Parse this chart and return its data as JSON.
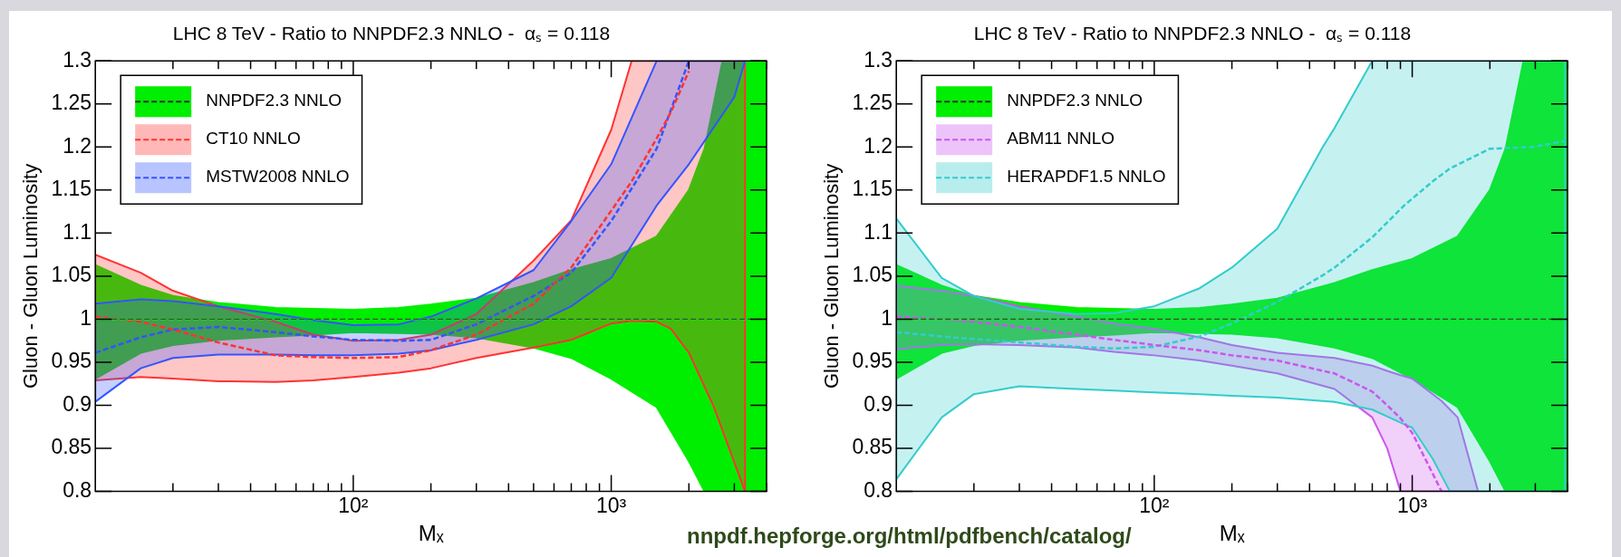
{
  "chart_data": [
    {
      "type": "line",
      "title": "LHC 8 TeV - Ratio to NNPDF2.3 NNLO -  αₛ = 0.118",
      "xlabel": "Mₓ",
      "ylabel": "Gluon - Gluon Luminosity",
      "log": "x",
      "marker": "none",
      "legend": "top left",
      "xlim": [
        10,
        4000
      ],
      "xticks": [
        {
          "value": 20,
          "label": null
        },
        {
          "value": 30,
          "label": null
        },
        {
          "value": 40,
          "label": null
        },
        {
          "value": 50,
          "label": null
        },
        {
          "value": 60,
          "label": null
        },
        {
          "value": 70,
          "label": null
        },
        {
          "value": 80,
          "label": null
        },
        {
          "value": 90,
          "label": null
        },
        {
          "value": 100,
          "label": "10²"
        },
        {
          "value": 200,
          "label": null
        },
        {
          "value": 300,
          "label": null
        },
        {
          "value": 400,
          "label": null
        },
        {
          "value": 500,
          "label": null
        },
        {
          "value": 600,
          "label": null
        },
        {
          "value": 700,
          "label": null
        },
        {
          "value": 800,
          "label": null
        },
        {
          "value": 900,
          "label": null
        },
        {
          "value": 1000,
          "label": "10³"
        },
        {
          "value": 2000,
          "label": null
        },
        {
          "value": 3000,
          "label": null
        },
        {
          "value": 4000,
          "label": null
        }
      ],
      "ylim": [
        0.8,
        1.3
      ],
      "yticks": [
        0.8,
        0.85,
        0.9,
        0.95,
        1,
        1.05,
        1.1,
        1.15,
        1.2,
        1.25,
        1.3
      ],
      "ref_lines": [
        {
          "axis": "y",
          "value": 1,
          "label": null,
          "color": "#444444",
          "line_style": "dashed"
        }
      ],
      "annotations": [
        "nnpdf.hepforge.org/html/pdfbench/catalog/"
      ],
      "series": [
        {
          "name": "NNPDF2.3 NNLO",
          "color": "#00ee00",
          "line_style": "dashed",
          "x": [
            10,
            15,
            20,
            30,
            50,
            70,
            100,
            150,
            200,
            300,
            500,
            700,
            1000,
            1500,
            2000,
            2300,
            2700,
            3000,
            4000
          ],
          "values": [
            1,
            1,
            1,
            1,
            1,
            1,
            1,
            1,
            1,
            1,
            1,
            1,
            1,
            1,
            1,
            1,
            1,
            1,
            1
          ],
          "upper": [
            1.063,
            1.039,
            1.027,
            1.019,
            1.013,
            1.012,
            1.011,
            1.013,
            1.017,
            1.024,
            1.042,
            1.057,
            1.07,
            1.096,
            1.15,
            1.198,
            1.3,
            1.3,
            1.3
          ],
          "lower": [
            0.931,
            0.961,
            0.97,
            0.976,
            0.98,
            0.982,
            0.985,
            0.984,
            0.983,
            0.979,
            0.967,
            0.955,
            0.931,
            0.898,
            0.835,
            0.8,
            0.8,
            0.8,
            0.8
          ]
        },
        {
          "name": "CT10 NNLO",
          "color": "#ff3333",
          "line_style": "dashed",
          "x": [
            10,
            15,
            20,
            30,
            50,
            70,
            100,
            150,
            200,
            300,
            500,
            700,
            1000,
            1200,
            1500,
            1700,
            2000,
            2500,
            3300
          ],
          "values": [
            1.003,
            0.997,
            0.988,
            0.973,
            0.958,
            0.956,
            0.955,
            0.956,
            0.964,
            0.982,
            1.018,
            1.06,
            1.126,
            1.16,
            1.21,
            1.24,
            1.288,
            null,
            null
          ],
          "upper": [
            1.075,
            1.054,
            1.033,
            1.015,
            0.997,
            0.982,
            0.975,
            0.976,
            0.982,
            1.006,
            1.068,
            1.115,
            1.22,
            1.3,
            1.3,
            1.3,
            1.3,
            1.3,
            1.3
          ],
          "lower": [
            0.929,
            0.933,
            0.931,
            0.928,
            0.927,
            0.929,
            0.933,
            0.938,
            0.943,
            0.955,
            0.967,
            0.976,
            0.995,
            0.998,
            0.997,
            0.989,
            0.961,
            0.898,
            0.8
          ]
        },
        {
          "name": "MSTW2008 NNLO",
          "color": "#3355ff",
          "line_style": "dashed",
          "x": [
            10,
            15,
            20,
            30,
            50,
            70,
            100,
            150,
            200,
            300,
            500,
            700,
            1000,
            1500,
            2000,
            3000,
            3300
          ],
          "values": [
            0.961,
            0.979,
            0.988,
            0.991,
            0.985,
            0.98,
            0.976,
            0.975,
            0.976,
            0.994,
            1.027,
            1.054,
            1.114,
            1.198,
            1.3,
            null,
            null
          ],
          "upper": [
            1.018,
            1.023,
            1.021,
            1.015,
            1.006,
            0.999,
            0.993,
            0.994,
            1.003,
            1.024,
            1.057,
            1.114,
            1.18,
            1.3,
            1.3,
            1.3,
            1.3
          ],
          "lower": [
            0.904,
            0.943,
            0.955,
            0.959,
            0.959,
            0.958,
            0.958,
            0.96,
            0.964,
            0.976,
            0.994,
            1.015,
            1.048,
            1.132,
            1.18,
            1.258,
            1.3
          ]
        }
      ]
    },
    {
      "type": "line",
      "title": "LHC 8 TeV - Ratio to NNPDF2.3 NNLO -  αₛ = 0.118",
      "xlabel": "Mₓ",
      "ylabel": "Gluon - Gluon Luminosity",
      "log": "x",
      "marker": "none",
      "legend": "top left",
      "xlim": [
        10,
        4000
      ],
      "xticks": [
        {
          "value": 20,
          "label": null
        },
        {
          "value": 30,
          "label": null
        },
        {
          "value": 40,
          "label": null
        },
        {
          "value": 50,
          "label": null
        },
        {
          "value": 60,
          "label": null
        },
        {
          "value": 70,
          "label": null
        },
        {
          "value": 80,
          "label": null
        },
        {
          "value": 90,
          "label": null
        },
        {
          "value": 100,
          "label": "10²"
        },
        {
          "value": 200,
          "label": null
        },
        {
          "value": 300,
          "label": null
        },
        {
          "value": 400,
          "label": null
        },
        {
          "value": 500,
          "label": null
        },
        {
          "value": 600,
          "label": null
        },
        {
          "value": 700,
          "label": null
        },
        {
          "value": 800,
          "label": null
        },
        {
          "value": 900,
          "label": null
        },
        {
          "value": 1000,
          "label": "10³"
        },
        {
          "value": 2000,
          "label": null
        },
        {
          "value": 3000,
          "label": null
        },
        {
          "value": 4000,
          "label": null
        }
      ],
      "ylim": [
        0.8,
        1.3
      ],
      "yticks": [
        0.8,
        0.85,
        0.9,
        0.95,
        1,
        1.05,
        1.1,
        1.15,
        1.2,
        1.25,
        1.3
      ],
      "ref_lines": [
        {
          "axis": "y",
          "value": 1,
          "label": null,
          "color": "#444444",
          "line_style": "dashed"
        }
      ],
      "series": [
        {
          "name": "NNPDF2.3 NNLO",
          "color": "#00ee00",
          "line_style": "dashed",
          "x": [
            10,
            15,
            20,
            30,
            50,
            70,
            100,
            150,
            200,
            300,
            500,
            700,
            1000,
            1500,
            2000,
            2300,
            2700,
            3000,
            4000
          ],
          "values": [
            1,
            1,
            1,
            1,
            1,
            1,
            1,
            1,
            1,
            1,
            1,
            1,
            1,
            1,
            1,
            1,
            1,
            1,
            1
          ],
          "upper": [
            1.063,
            1.039,
            1.027,
            1.019,
            1.013,
            1.012,
            1.011,
            1.013,
            1.017,
            1.024,
            1.042,
            1.057,
            1.07,
            1.096,
            1.15,
            1.198,
            1.3,
            1.3,
            1.3
          ],
          "lower": [
            0.931,
            0.961,
            0.97,
            0.976,
            0.98,
            0.982,
            0.985,
            0.984,
            0.983,
            0.979,
            0.967,
            0.955,
            0.931,
            0.898,
            0.835,
            0.8,
            0.8,
            0.8,
            0.8
          ]
        },
        {
          "name": "ABM11 NNLO",
          "color": "#cc55ee",
          "line_style": "dashed",
          "x": [
            10,
            15,
            20,
            30,
            50,
            70,
            100,
            150,
            200,
            300,
            500,
            700,
            800,
            900,
            1000,
            1300,
            1500,
            1800
          ],
          "values": [
            1.003,
            1,
            0.997,
            0.991,
            0.982,
            0.976,
            0.97,
            0.964,
            0.958,
            0.952,
            0.937,
            0.916,
            0.9,
            0.885,
            0.868,
            0.8,
            null,
            null
          ],
          "upper": [
            1.039,
            1.033,
            1.027,
            1.015,
            1.003,
            0.995,
            0.989,
            0.979,
            0.97,
            0.961,
            0.955,
            0.946,
            0.94,
            0.935,
            0.931,
            0.905,
            0.886,
            0.8
          ],
          "lower": [
            0.965,
            0.97,
            0.971,
            0.97,
            0.967,
            0.962,
            0.958,
            0.952,
            0.946,
            0.937,
            0.919,
            0.886,
            0.85,
            0.8,
            0.8,
            0.8,
            0.8,
            0.8
          ]
        },
        {
          "name": "HERAPDF1.5 NNLO",
          "color": "#33cccc",
          "line_style": "dashed",
          "x": [
            10,
            15,
            20,
            30,
            50,
            70,
            100,
            150,
            200,
            300,
            450,
            500,
            700,
            930,
            1000,
            1200,
            1400,
            2000,
            2950,
            3900
          ],
          "values": [
            0.985,
            0.98,
            0.977,
            0.973,
            0.968,
            0.966,
            0.968,
            0.98,
            0.995,
            1.02,
            1.051,
            1.06,
            1.095,
            1.132,
            1.14,
            1.16,
            1.175,
            1.198,
            1.2,
            1.207
          ],
          "upper": [
            1.117,
            1.048,
            1.027,
            1.012,
            1.006,
            1.007,
            1.015,
            1.036,
            1.06,
            1.105,
            1.2,
            1.222,
            1.3,
            1.3,
            1.3,
            1.3,
            1.3,
            1.3,
            1.3,
            1.3
          ],
          "lower": [
            0.814,
            0.886,
            0.913,
            0.922,
            0.919,
            0.917,
            0.915,
            0.913,
            0.911,
            0.909,
            0.905,
            0.904,
            0.895,
            0.878,
            0.874,
            0.838,
            0.8,
            0.8,
            0.8,
            0.8
          ]
        }
      ]
    }
  ]
}
